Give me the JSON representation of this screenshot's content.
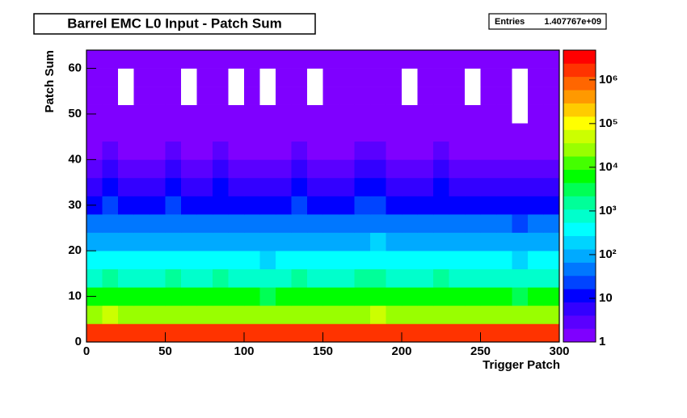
{
  "chart_data": {
    "type": "heatmap",
    "title": "Barrel EMC L0 Input - Patch Sum",
    "stats": {
      "label": "Entries",
      "value": "1.407767e+09"
    },
    "x_label": "Trigger Patch",
    "y_label": "Patch Sum",
    "xbins": [
      0,
      10,
      20,
      30,
      40,
      50,
      60,
      70,
      80,
      90,
      100,
      110,
      120,
      130,
      140,
      150,
      160,
      170,
      180,
      190,
      200,
      210,
      220,
      230,
      240,
      250,
      260,
      270,
      280,
      290,
      300
    ],
    "ybins": [
      0,
      4,
      8,
      12,
      16,
      20,
      24,
      28,
      32,
      36,
      40,
      44,
      48,
      52,
      56,
      60,
      64
    ],
    "z": [
      [
        2000000,
        2100000,
        1900000,
        2000000,
        2000000,
        2200000,
        1900000,
        2000000,
        2100000,
        2000000,
        1900000,
        1800000,
        2000000,
        2100000,
        1900000,
        2000000,
        2000000,
        2100000,
        2200000,
        2000000,
        1900000,
        2000000,
        2100000,
        2000000,
        1900000,
        2000000,
        2000000,
        1400000,
        2000000,
        2000000
      ],
      [
        30000,
        36000,
        28000,
        32000,
        30000,
        34000,
        27000,
        31000,
        33000,
        29000,
        30000,
        26000,
        31000,
        34000,
        28000,
        30000,
        32000,
        35000,
        38000,
        31000,
        29000,
        30000,
        33000,
        31000,
        28000,
        30000,
        31000,
        21000,
        30000,
        31000
      ],
      [
        5000,
        6200,
        4600,
        5200,
        5000,
        5600,
        4500,
        5100,
        5400,
        4800,
        5000,
        4300,
        5100,
        5600,
        4600,
        5000,
        5300,
        5800,
        6400,
        5100,
        4800,
        5000,
        5500,
        5100,
        4600,
        5000,
        5100,
        3500,
        5000,
        5100
      ],
      [
        1000,
        1300,
        900,
        1050,
        1000,
        1150,
        900,
        1000,
        1100,
        950,
        1000,
        850,
        1000,
        1150,
        900,
        1000,
        1050,
        1200,
        1350,
        1000,
        950,
        1000,
        1100,
        1000,
        900,
        1000,
        1000,
        700,
        1000,
        1000
      ],
      [
        300,
        400,
        270,
        320,
        300,
        350,
        270,
        300,
        330,
        290,
        300,
        260,
        300,
        350,
        270,
        300,
        320,
        360,
        410,
        300,
        290,
        300,
        330,
        300,
        270,
        300,
        300,
        210,
        300,
        300
      ],
      [
        100,
        130,
        90,
        105,
        100,
        115,
        90,
        100,
        110,
        95,
        100,
        85,
        100,
        115,
        90,
        100,
        105,
        120,
        135,
        100,
        95,
        100,
        110,
        100,
        90,
        100,
        100,
        70,
        100,
        100
      ],
      [
        40,
        52,
        36,
        42,
        40,
        46,
        36,
        40,
        44,
        38,
        40,
        34,
        40,
        46,
        36,
        40,
        42,
        48,
        54,
        40,
        38,
        40,
        44,
        40,
        36,
        40,
        40,
        28,
        40,
        40
      ],
      [
        15,
        20,
        13,
        16,
        15,
        17,
        13,
        15,
        16,
        14,
        15,
        13,
        15,
        17,
        13,
        15,
        16,
        18,
        20,
        15,
        14,
        15,
        16,
        15,
        13,
        15,
        15,
        10,
        15,
        15
      ],
      [
        8,
        10,
        7,
        8,
        8,
        9,
        7,
        8,
        9,
        7,
        8,
        7,
        8,
        9,
        7,
        8,
        8,
        9,
        10,
        8,
        7,
        8,
        9,
        8,
        7,
        8,
        8,
        5,
        8,
        8
      ],
      [
        4,
        5,
        3.5,
        4,
        4,
        4.5,
        3.5,
        4,
        4.5,
        3.5,
        4,
        3.5,
        4,
        4.5,
        3.5,
        4,
        4,
        4.5,
        5,
        4,
        3.5,
        4,
        4.5,
        4,
        3.5,
        4,
        4,
        2.8,
        4,
        4
      ],
      [
        2,
        2.5,
        1.8,
        2,
        2,
        2.2,
        1.8,
        2,
        2.2,
        1.8,
        2,
        1.8,
        2,
        2.2,
        1.8,
        2,
        2,
        2.2,
        2.5,
        2,
        1.8,
        2,
        2.2,
        2,
        1.8,
        2,
        2,
        1.4,
        2,
        2
      ],
      [
        1.5,
        1.8,
        1.4,
        1.5,
        1.5,
        1.6,
        1.4,
        1.5,
        1.6,
        1.4,
        1.5,
        1.4,
        1.5,
        1.6,
        1.4,
        1.5,
        1.5,
        1.6,
        1.8,
        1.5,
        1.4,
        1.5,
        1.6,
        1.5,
        1.4,
        1.5,
        1.5,
        1.1,
        1.5,
        1.5
      ],
      [
        1.2,
        1.4,
        1.1,
        1.2,
        1.2,
        1.3,
        1.1,
        1.2,
        1.3,
        1.1,
        1.2,
        1.1,
        1.2,
        1.3,
        1.1,
        1.2,
        1.2,
        1.3,
        1.4,
        1.2,
        1.1,
        1.2,
        1.3,
        1.2,
        1.1,
        1.2,
        1.2,
        0.9,
        1.2,
        1.2
      ],
      [
        1,
        1.2,
        0.9,
        1,
        1,
        1.1,
        0.9,
        1,
        1.1,
        0.9,
        1,
        0.9,
        1,
        1.1,
        0.9,
        1,
        1,
        1.1,
        1.2,
        1,
        0.9,
        1,
        1.1,
        1,
        0.9,
        1,
        1,
        0.7,
        1,
        1
      ],
      [
        1,
        1.1,
        0.9,
        1,
        1,
        1,
        0.9,
        1,
        1,
        0.9,
        1,
        0.9,
        1,
        1,
        0.9,
        1,
        1,
        1,
        1.1,
        1,
        0.9,
        1,
        1,
        1,
        0.9,
        1,
        1,
        0.6,
        1,
        1
      ],
      [
        1.5,
        1.5,
        1.5,
        1.5,
        1.5,
        1.5,
        1.5,
        1.5,
        1.5,
        1.5,
        1.5,
        1.5,
        1.5,
        1.5,
        1.5,
        1.5,
        1.5,
        1.5,
        1.5,
        1.5,
        1.5,
        1.5,
        1.5,
        1.5,
        1.5,
        1.5,
        1.5,
        1.1,
        1.5,
        1.5
      ]
    ],
    "xlim": [
      0,
      300
    ],
    "xticks": [
      0,
      50,
      100,
      150,
      200,
      250,
      300
    ],
    "ylim": [
      0,
      64
    ],
    "yticks": [
      0,
      10,
      20,
      30,
      40,
      50,
      60
    ],
    "zlim": [
      1,
      4800000
    ],
    "zticks": [
      1,
      10,
      {
        "value": 100,
        "label": "10²"
      },
      {
        "value": 1000,
        "label": "10³"
      },
      {
        "value": 10000,
        "label": "10⁴"
      },
      {
        "value": 100000,
        "label": "10⁵"
      },
      {
        "value": 1000000,
        "label": "10⁶"
      }
    ],
    "log_z": true,
    "palette": [
      "#7f00ff",
      "#5a00ff",
      "#3300ff",
      "#0000ff",
      "#0044ff",
      "#0077ff",
      "#00aaff",
      "#00d4ff",
      "#00ffff",
      "#00ffcc",
      "#00ff99",
      "#00ff55",
      "#00ff00",
      "#44ff00",
      "#99ff00",
      "#ccff00",
      "#ffff00",
      "#ffcc00",
      "#ff9900",
      "#ff6600",
      "#ff3300",
      "#ff0000"
    ]
  }
}
